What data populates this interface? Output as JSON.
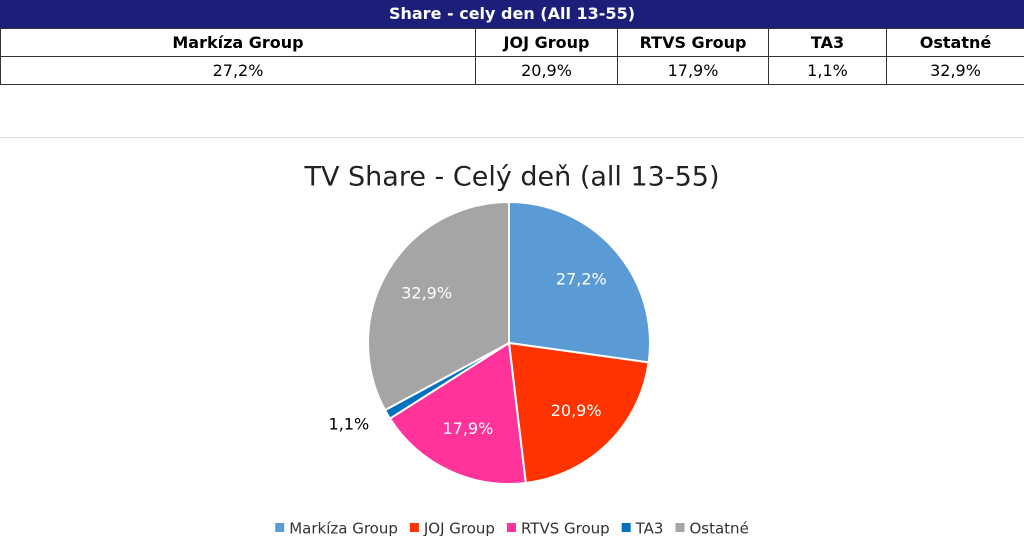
{
  "table": {
    "title": "Share - cely den (All 13-55)",
    "header": [
      "Markíza Group",
      "JOJ Group",
      "RTVS Group",
      "TA3",
      "Ostatné"
    ],
    "row": [
      "27,2%",
      "20,9%",
      "17,9%",
      "1,1%",
      "32,9%"
    ]
  },
  "chart_data": {
    "type": "pie",
    "title": "TV Share - Celý deň (all 13-55)",
    "categories": [
      "Markíza Group",
      "JOJ Group",
      "RTVS Group",
      "TA3",
      "Ostatné"
    ],
    "values": [
      27.2,
      20.9,
      17.9,
      1.1,
      32.9
    ],
    "value_labels": [
      "27,2%",
      "20,9%",
      "17,9%",
      "1,1%",
      "32,9%"
    ],
    "colors": [
      "#5b9bd5",
      "#ff3300",
      "#ff3399",
      "#0070c0",
      "#a5a5a5"
    ],
    "legend": "bottom"
  }
}
